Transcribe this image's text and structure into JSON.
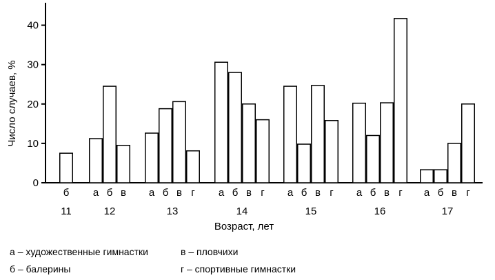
{
  "chart_data": {
    "type": "bar",
    "ylabel": "Число случаев, %",
    "xlabel": "Возраст, лет",
    "ylim": [
      0,
      45
    ],
    "yticks": [
      0,
      10,
      20,
      30,
      40
    ],
    "grid": false,
    "groups": [
      {
        "age": "11",
        "bars": [
          {
            "label": "б",
            "value": 7.5
          }
        ]
      },
      {
        "age": "12",
        "bars": [
          {
            "label": "а",
            "value": 11.2
          },
          {
            "label": "б",
            "value": 24.5
          },
          {
            "label": "в",
            "value": 9.5
          }
        ]
      },
      {
        "age": "13",
        "bars": [
          {
            "label": "а",
            "value": 12.6
          },
          {
            "label": "б",
            "value": 18.8
          },
          {
            "label": "в",
            "value": 20.6
          },
          {
            "label": "г",
            "value": 8.1
          }
        ]
      },
      {
        "age": "14",
        "bars": [
          {
            "label": "а",
            "value": 30.6
          },
          {
            "label": "б",
            "value": 28.0
          },
          {
            "label": "в",
            "value": 20.0
          },
          {
            "label": "г",
            "value": 16.0
          }
        ]
      },
      {
        "age": "15",
        "bars": [
          {
            "label": "а",
            "value": 24.5
          },
          {
            "label": "б",
            "value": 9.8
          },
          {
            "label": "в",
            "value": 24.7
          },
          {
            "label": "г",
            "value": 15.8
          }
        ]
      },
      {
        "age": "16",
        "bars": [
          {
            "label": "а",
            "value": 20.2
          },
          {
            "label": "б",
            "value": 12.0
          },
          {
            "label": "в",
            "value": 20.3
          },
          {
            "label": "г",
            "value": 41.7
          }
        ]
      },
      {
        "age": "17",
        "bars": [
          {
            "label": "а",
            "value": 3.3
          },
          {
            "label": "б",
            "value": 3.3
          },
          {
            "label": "в",
            "value": 10.0
          },
          {
            "label": "г",
            "value": 20.0
          }
        ]
      }
    ]
  },
  "legend": [
    {
      "key": "а",
      "text": "– художественные гимнастки"
    },
    {
      "key": "б",
      "text": "– балерины"
    },
    {
      "key": "в",
      "text": "– пловчихи"
    },
    {
      "key": "г",
      "text": "– спортивные гимнастки"
    }
  ]
}
